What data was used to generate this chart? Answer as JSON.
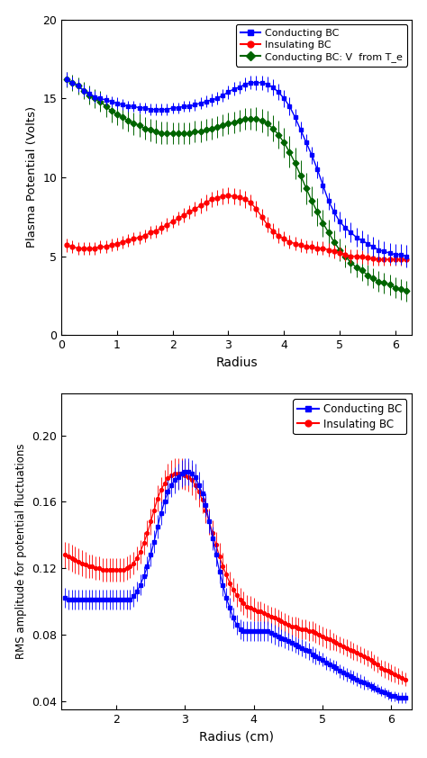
{
  "top_plot": {
    "ylabel": "Plasma Potential (Volts)",
    "xlabel": "Radius",
    "xlim": [
      0,
      6.3
    ],
    "ylim": [
      0,
      20
    ],
    "yticks": [
      0,
      5,
      10,
      15,
      20
    ],
    "xticks": [
      0,
      1,
      2,
      3,
      4,
      5,
      6
    ],
    "legend_labels": [
      "Conducting BC",
      "Insulating BC",
      "Conducting BC: V  from T_e"
    ],
    "colors": [
      "#0000FF",
      "#FF0000",
      "#006400"
    ],
    "blue_x": [
      0.1,
      0.2,
      0.3,
      0.4,
      0.5,
      0.6,
      0.7,
      0.8,
      0.9,
      1.0,
      1.1,
      1.2,
      1.3,
      1.4,
      1.5,
      1.6,
      1.7,
      1.8,
      1.9,
      2.0,
      2.1,
      2.2,
      2.3,
      2.4,
      2.5,
      2.6,
      2.7,
      2.8,
      2.9,
      3.0,
      3.1,
      3.2,
      3.3,
      3.4,
      3.5,
      3.6,
      3.7,
      3.8,
      3.9,
      4.0,
      4.1,
      4.2,
      4.3,
      4.4,
      4.5,
      4.6,
      4.7,
      4.8,
      4.9,
      5.0,
      5.1,
      5.2,
      5.3,
      5.4,
      5.5,
      5.6,
      5.7,
      5.8,
      5.9,
      6.0,
      6.1,
      6.2
    ],
    "blue_y": [
      16.2,
      16.0,
      15.8,
      15.5,
      15.3,
      15.1,
      15.0,
      14.9,
      14.8,
      14.7,
      14.6,
      14.5,
      14.5,
      14.4,
      14.4,
      14.3,
      14.3,
      14.3,
      14.3,
      14.4,
      14.4,
      14.5,
      14.5,
      14.6,
      14.7,
      14.8,
      14.9,
      15.0,
      15.2,
      15.4,
      15.6,
      15.7,
      15.9,
      16.0,
      16.0,
      16.0,
      15.9,
      15.7,
      15.4,
      15.0,
      14.5,
      13.8,
      13.0,
      12.2,
      11.4,
      10.5,
      9.5,
      8.5,
      7.8,
      7.2,
      6.8,
      6.5,
      6.2,
      6.0,
      5.8,
      5.6,
      5.4,
      5.3,
      5.2,
      5.1,
      5.1,
      5.0
    ],
    "blue_yerr": [
      0.45,
      0.4,
      0.4,
      0.38,
      0.38,
      0.38,
      0.35,
      0.35,
      0.35,
      0.35,
      0.35,
      0.35,
      0.35,
      0.35,
      0.35,
      0.35,
      0.35,
      0.35,
      0.35,
      0.35,
      0.35,
      0.35,
      0.35,
      0.38,
      0.38,
      0.38,
      0.4,
      0.4,
      0.4,
      0.42,
      0.42,
      0.42,
      0.43,
      0.43,
      0.45,
      0.45,
      0.48,
      0.5,
      0.52,
      0.55,
      0.55,
      0.55,
      0.55,
      0.55,
      0.55,
      0.55,
      0.55,
      0.55,
      0.58,
      0.6,
      0.62,
      0.62,
      0.62,
      0.62,
      0.62,
      0.65,
      0.65,
      0.65,
      0.65,
      0.65,
      0.65,
      0.7
    ],
    "red_x": [
      0.1,
      0.2,
      0.3,
      0.4,
      0.5,
      0.6,
      0.7,
      0.8,
      0.9,
      1.0,
      1.1,
      1.2,
      1.3,
      1.4,
      1.5,
      1.6,
      1.7,
      1.8,
      1.9,
      2.0,
      2.1,
      2.2,
      2.3,
      2.4,
      2.5,
      2.6,
      2.7,
      2.8,
      2.9,
      3.0,
      3.1,
      3.2,
      3.3,
      3.4,
      3.5,
      3.6,
      3.7,
      3.8,
      3.9,
      4.0,
      4.1,
      4.2,
      4.3,
      4.4,
      4.5,
      4.6,
      4.7,
      4.8,
      4.9,
      5.0,
      5.1,
      5.2,
      5.3,
      5.4,
      5.5,
      5.6,
      5.7,
      5.8,
      5.9,
      6.0,
      6.1,
      6.2
    ],
    "red_y": [
      5.7,
      5.6,
      5.5,
      5.5,
      5.5,
      5.5,
      5.6,
      5.6,
      5.7,
      5.8,
      5.9,
      6.0,
      6.1,
      6.2,
      6.3,
      6.5,
      6.6,
      6.8,
      7.0,
      7.2,
      7.4,
      7.6,
      7.8,
      8.0,
      8.2,
      8.4,
      8.6,
      8.7,
      8.8,
      8.85,
      8.8,
      8.75,
      8.6,
      8.4,
      8.0,
      7.5,
      7.0,
      6.6,
      6.3,
      6.1,
      5.9,
      5.8,
      5.7,
      5.6,
      5.6,
      5.5,
      5.5,
      5.4,
      5.3,
      5.2,
      5.1,
      5.0,
      5.0,
      4.95,
      4.9,
      4.85,
      4.8,
      4.8,
      4.8,
      4.8,
      4.8,
      4.8
    ],
    "red_yerr": [
      0.42,
      0.4,
      0.4,
      0.4,
      0.4,
      0.4,
      0.4,
      0.4,
      0.4,
      0.4,
      0.4,
      0.4,
      0.4,
      0.4,
      0.4,
      0.4,
      0.4,
      0.4,
      0.42,
      0.42,
      0.42,
      0.45,
      0.45,
      0.48,
      0.5,
      0.5,
      0.5,
      0.5,
      0.5,
      0.5,
      0.5,
      0.52,
      0.52,
      0.52,
      0.52,
      0.52,
      0.5,
      0.5,
      0.48,
      0.45,
      0.43,
      0.42,
      0.42,
      0.42,
      0.42,
      0.42,
      0.42,
      0.42,
      0.42,
      0.42,
      0.42,
      0.42,
      0.42,
      0.42,
      0.42,
      0.42,
      0.42,
      0.42,
      0.42,
      0.42,
      0.42,
      0.42
    ],
    "green_x": [
      0.1,
      0.2,
      0.3,
      0.4,
      0.5,
      0.6,
      0.7,
      0.8,
      0.9,
      1.0,
      1.1,
      1.2,
      1.3,
      1.4,
      1.5,
      1.6,
      1.7,
      1.8,
      1.9,
      2.0,
      2.1,
      2.2,
      2.3,
      2.4,
      2.5,
      2.6,
      2.7,
      2.8,
      2.9,
      3.0,
      3.1,
      3.2,
      3.3,
      3.4,
      3.5,
      3.6,
      3.7,
      3.8,
      3.9,
      4.0,
      4.1,
      4.2,
      4.3,
      4.4,
      4.5,
      4.6,
      4.7,
      4.8,
      4.9,
      5.0,
      5.1,
      5.2,
      5.3,
      5.4,
      5.5,
      5.6,
      5.7,
      5.8,
      5.9,
      6.0,
      6.1,
      6.2
    ],
    "green_y": [
      16.2,
      16.0,
      15.8,
      15.5,
      15.2,
      15.0,
      14.8,
      14.5,
      14.2,
      14.0,
      13.8,
      13.6,
      13.4,
      13.3,
      13.1,
      13.0,
      12.9,
      12.8,
      12.8,
      12.8,
      12.8,
      12.8,
      12.8,
      12.9,
      12.9,
      13.0,
      13.1,
      13.2,
      13.3,
      13.4,
      13.5,
      13.6,
      13.7,
      13.7,
      13.7,
      13.6,
      13.4,
      13.1,
      12.7,
      12.2,
      11.6,
      10.9,
      10.1,
      9.3,
      8.5,
      7.8,
      7.1,
      6.5,
      5.9,
      5.4,
      5.0,
      4.6,
      4.3,
      4.1,
      3.8,
      3.6,
      3.4,
      3.3,
      3.2,
      3.0,
      2.9,
      2.8
    ],
    "green_yerr": [
      0.5,
      0.5,
      0.55,
      0.55,
      0.6,
      0.6,
      0.65,
      0.68,
      0.7,
      0.72,
      0.72,
      0.72,
      0.72,
      0.72,
      0.72,
      0.72,
      0.72,
      0.72,
      0.72,
      0.7,
      0.7,
      0.7,
      0.7,
      0.68,
      0.68,
      0.68,
      0.68,
      0.68,
      0.68,
      0.68,
      0.68,
      0.68,
      0.68,
      0.7,
      0.72,
      0.75,
      0.8,
      0.85,
      0.9,
      0.95,
      1.0,
      1.0,
      1.0,
      1.0,
      0.95,
      0.9,
      0.85,
      0.8,
      0.75,
      0.72,
      0.7,
      0.68,
      0.65,
      0.65,
      0.65,
      0.65,
      0.65,
      0.65,
      0.65,
      0.65,
      0.65,
      0.65
    ]
  },
  "bottom_plot": {
    "ylabel": "RMS amplitude for potential fluctuations",
    "xlabel": "Radius (cm)",
    "xlim": [
      1.2,
      6.3
    ],
    "ylim": [
      0.035,
      0.225
    ],
    "yticks": [
      0.04,
      0.08,
      0.12,
      0.16,
      0.2
    ],
    "xticks": [
      2,
      3,
      4,
      5,
      6
    ],
    "legend_labels": [
      "Conducting BC",
      "Insulating BC"
    ],
    "colors": [
      "#0000FF",
      "#FF0000"
    ],
    "blue_x": [
      1.25,
      1.3,
      1.35,
      1.4,
      1.45,
      1.5,
      1.55,
      1.6,
      1.65,
      1.7,
      1.75,
      1.8,
      1.85,
      1.9,
      1.95,
      2.0,
      2.05,
      2.1,
      2.15,
      2.2,
      2.25,
      2.3,
      2.35,
      2.4,
      2.45,
      2.5,
      2.55,
      2.6,
      2.65,
      2.7,
      2.75,
      2.8,
      2.85,
      2.9,
      2.95,
      3.0,
      3.05,
      3.1,
      3.15,
      3.2,
      3.25,
      3.3,
      3.35,
      3.4,
      3.45,
      3.5,
      3.55,
      3.6,
      3.65,
      3.7,
      3.75,
      3.8,
      3.85,
      3.9,
      3.95,
      4.0,
      4.05,
      4.1,
      4.15,
      4.2,
      4.25,
      4.3,
      4.35,
      4.4,
      4.45,
      4.5,
      4.55,
      4.6,
      4.65,
      4.7,
      4.75,
      4.8,
      4.85,
      4.9,
      4.95,
      5.0,
      5.05,
      5.1,
      5.15,
      5.2,
      5.25,
      5.3,
      5.35,
      5.4,
      5.45,
      5.5,
      5.55,
      5.6,
      5.65,
      5.7,
      5.75,
      5.8,
      5.85,
      5.9,
      5.95,
      6.0,
      6.05,
      6.1,
      6.15,
      6.2
    ],
    "blue_y": [
      0.102,
      0.101,
      0.101,
      0.101,
      0.101,
      0.101,
      0.101,
      0.101,
      0.101,
      0.101,
      0.101,
      0.101,
      0.101,
      0.101,
      0.101,
      0.101,
      0.101,
      0.101,
      0.101,
      0.101,
      0.103,
      0.106,
      0.11,
      0.115,
      0.121,
      0.128,
      0.136,
      0.145,
      0.153,
      0.16,
      0.166,
      0.17,
      0.173,
      0.175,
      0.177,
      0.178,
      0.178,
      0.177,
      0.175,
      0.17,
      0.165,
      0.158,
      0.148,
      0.138,
      0.128,
      0.118,
      0.11,
      0.102,
      0.096,
      0.09,
      0.086,
      0.083,
      0.082,
      0.082,
      0.082,
      0.082,
      0.082,
      0.082,
      0.082,
      0.082,
      0.081,
      0.08,
      0.079,
      0.078,
      0.077,
      0.076,
      0.075,
      0.074,
      0.073,
      0.072,
      0.071,
      0.07,
      0.068,
      0.067,
      0.066,
      0.065,
      0.063,
      0.062,
      0.061,
      0.06,
      0.058,
      0.057,
      0.056,
      0.055,
      0.054,
      0.053,
      0.052,
      0.051,
      0.05,
      0.049,
      0.048,
      0.047,
      0.046,
      0.045,
      0.044,
      0.043,
      0.043,
      0.042,
      0.042,
      0.042
    ],
    "blue_yerr": [
      0.006,
      0.006,
      0.006,
      0.006,
      0.006,
      0.006,
      0.006,
      0.006,
      0.006,
      0.006,
      0.006,
      0.006,
      0.006,
      0.006,
      0.006,
      0.006,
      0.006,
      0.006,
      0.006,
      0.006,
      0.006,
      0.006,
      0.006,
      0.006,
      0.006,
      0.007,
      0.007,
      0.007,
      0.007,
      0.007,
      0.007,
      0.007,
      0.008,
      0.008,
      0.008,
      0.008,
      0.008,
      0.008,
      0.008,
      0.008,
      0.008,
      0.007,
      0.007,
      0.007,
      0.007,
      0.007,
      0.007,
      0.006,
      0.006,
      0.006,
      0.006,
      0.006,
      0.006,
      0.006,
      0.006,
      0.006,
      0.006,
      0.006,
      0.006,
      0.006,
      0.006,
      0.006,
      0.006,
      0.005,
      0.005,
      0.005,
      0.005,
      0.005,
      0.005,
      0.005,
      0.005,
      0.005,
      0.005,
      0.005,
      0.004,
      0.004,
      0.004,
      0.004,
      0.004,
      0.004,
      0.004,
      0.004,
      0.004,
      0.004,
      0.004,
      0.004,
      0.004,
      0.004,
      0.003,
      0.003,
      0.003,
      0.003,
      0.003,
      0.003,
      0.003,
      0.003,
      0.003,
      0.003,
      0.003,
      0.003
    ],
    "red_x": [
      1.25,
      1.3,
      1.35,
      1.4,
      1.45,
      1.5,
      1.55,
      1.6,
      1.65,
      1.7,
      1.75,
      1.8,
      1.85,
      1.9,
      1.95,
      2.0,
      2.05,
      2.1,
      2.15,
      2.2,
      2.25,
      2.3,
      2.35,
      2.4,
      2.45,
      2.5,
      2.55,
      2.6,
      2.65,
      2.7,
      2.75,
      2.8,
      2.85,
      2.9,
      2.95,
      3.0,
      3.05,
      3.1,
      3.15,
      3.2,
      3.25,
      3.3,
      3.35,
      3.4,
      3.45,
      3.5,
      3.55,
      3.6,
      3.65,
      3.7,
      3.75,
      3.8,
      3.85,
      3.9,
      3.95,
      4.0,
      4.05,
      4.1,
      4.15,
      4.2,
      4.25,
      4.3,
      4.35,
      4.4,
      4.45,
      4.5,
      4.55,
      4.6,
      4.65,
      4.7,
      4.75,
      4.8,
      4.85,
      4.9,
      4.95,
      5.0,
      5.05,
      5.1,
      5.15,
      5.2,
      5.25,
      5.3,
      5.35,
      5.4,
      5.45,
      5.5,
      5.55,
      5.6,
      5.65,
      5.7,
      5.75,
      5.8,
      5.85,
      5.9,
      5.95,
      6.0,
      6.05,
      6.1,
      6.15,
      6.2
    ],
    "red_y": [
      0.128,
      0.127,
      0.126,
      0.125,
      0.124,
      0.123,
      0.122,
      0.121,
      0.121,
      0.12,
      0.12,
      0.119,
      0.119,
      0.119,
      0.119,
      0.119,
      0.119,
      0.119,
      0.12,
      0.121,
      0.123,
      0.126,
      0.13,
      0.135,
      0.141,
      0.148,
      0.155,
      0.162,
      0.167,
      0.171,
      0.174,
      0.176,
      0.177,
      0.177,
      0.177,
      0.176,
      0.175,
      0.173,
      0.17,
      0.166,
      0.161,
      0.155,
      0.148,
      0.141,
      0.134,
      0.127,
      0.121,
      0.116,
      0.111,
      0.107,
      0.104,
      0.101,
      0.099,
      0.097,
      0.096,
      0.095,
      0.094,
      0.094,
      0.093,
      0.092,
      0.091,
      0.09,
      0.089,
      0.088,
      0.087,
      0.086,
      0.085,
      0.085,
      0.084,
      0.083,
      0.083,
      0.082,
      0.082,
      0.081,
      0.08,
      0.079,
      0.078,
      0.077,
      0.076,
      0.075,
      0.074,
      0.073,
      0.072,
      0.071,
      0.07,
      0.069,
      0.068,
      0.067,
      0.066,
      0.065,
      0.063,
      0.062,
      0.06,
      0.059,
      0.058,
      0.057,
      0.056,
      0.055,
      0.054,
      0.053
    ],
    "red_yerr": [
      0.008,
      0.008,
      0.008,
      0.008,
      0.008,
      0.008,
      0.008,
      0.007,
      0.007,
      0.007,
      0.007,
      0.007,
      0.007,
      0.007,
      0.007,
      0.007,
      0.007,
      0.007,
      0.007,
      0.007,
      0.007,
      0.007,
      0.007,
      0.007,
      0.008,
      0.008,
      0.008,
      0.008,
      0.008,
      0.008,
      0.009,
      0.009,
      0.009,
      0.009,
      0.009,
      0.009,
      0.009,
      0.009,
      0.009,
      0.009,
      0.008,
      0.008,
      0.008,
      0.008,
      0.008,
      0.008,
      0.008,
      0.007,
      0.007,
      0.007,
      0.007,
      0.007,
      0.007,
      0.007,
      0.007,
      0.007,
      0.006,
      0.006,
      0.006,
      0.006,
      0.006,
      0.006,
      0.006,
      0.006,
      0.006,
      0.006,
      0.006,
      0.006,
      0.006,
      0.006,
      0.006,
      0.006,
      0.006,
      0.006,
      0.006,
      0.006,
      0.006,
      0.006,
      0.005,
      0.005,
      0.005,
      0.005,
      0.005,
      0.005,
      0.005,
      0.005,
      0.005,
      0.005,
      0.005,
      0.005,
      0.005,
      0.005,
      0.005,
      0.005,
      0.005,
      0.005,
      0.005,
      0.005,
      0.004,
      0.004
    ]
  }
}
